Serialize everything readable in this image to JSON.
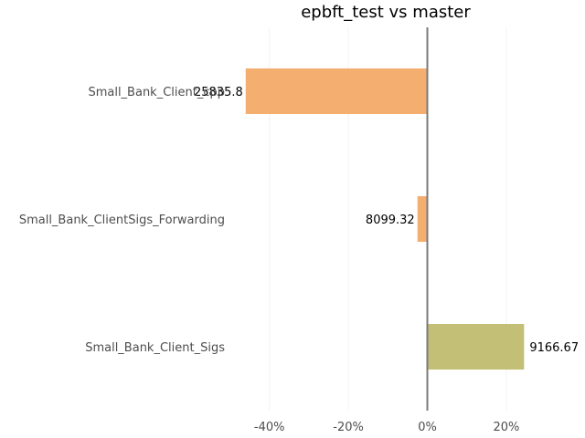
{
  "chart_data": {
    "type": "bar",
    "orientation": "horizontal",
    "title": "epbft_test vs master",
    "xlabel": "",
    "ylabel": "",
    "xlim": [
      -0.5,
      0.3
    ],
    "x_ticks": [
      -0.4,
      -0.2,
      0,
      0.2
    ],
    "x_tick_labels": [
      "-40%",
      "-20%",
      "0%",
      "20%"
    ],
    "grid": "vertical",
    "categories": [
      "Small_Bank_Client_Sigs",
      "Small_Bank_ClientSigs_Forwarding",
      "Small_Bank_Client_cpp"
    ],
    "category_labels": [
      "Small_Bank_Client_Sigs",
      "Small_Bank_ClientSigs_Forwarding",
      "Small_Bank_Client_cpp"
    ],
    "values": [
      0.245,
      -0.025,
      -0.46
    ],
    "data_labels": [
      "9166.67",
      "8099.32",
      "25835.8"
    ],
    "colors": [
      "#c4bf77",
      "#f4ae6f",
      "#f4ae6f"
    ]
  }
}
